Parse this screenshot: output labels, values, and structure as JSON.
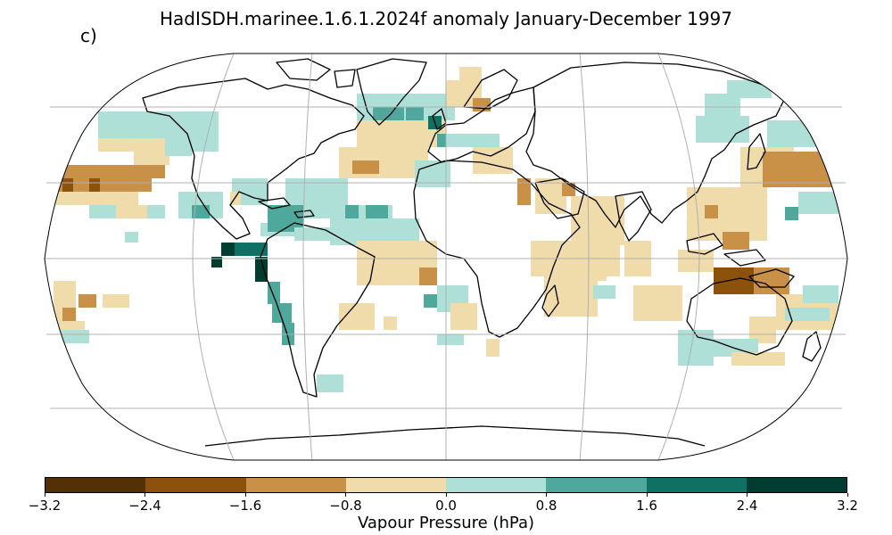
{
  "title": "HadISDH.marinee.1.6.1.2024f anomaly January-December 1997",
  "panel_label": "c)",
  "colorbar": {
    "label": "Vapour Pressure (hPa)",
    "ticks": [
      "−3.2",
      "−2.4",
      "−1.6",
      "−0.8",
      "0.0",
      "0.8",
      "1.6",
      "2.4",
      "3.2"
    ],
    "colors": [
      "#543005",
      "#8c510a",
      "#c99148",
      "#f0dbaa",
      "#aee0d8",
      "#4fa89c",
      "#0f7064",
      "#003c30"
    ]
  },
  "map": {
    "projection": "Robinson",
    "graticule": true,
    "coastline_color": "#000000",
    "grid_color": "#b0b0b0"
  }
}
